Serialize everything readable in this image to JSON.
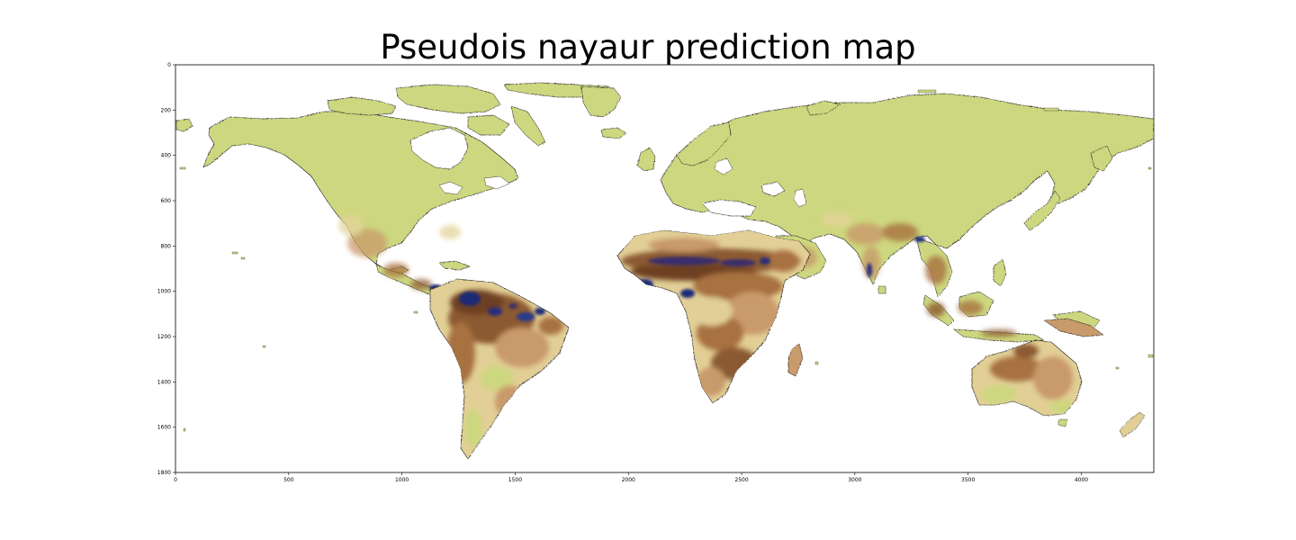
{
  "title": "Pseudois nayaur prediction map",
  "chart_data": {
    "type": "heatmap",
    "title": "Pseudois nayaur prediction map",
    "xlabel": "",
    "ylabel": "",
    "xlim": [
      0,
      4320
    ],
    "ylim": [
      1800,
      0
    ],
    "xticks": [
      "0",
      "500",
      "1000",
      "1500",
      "2000",
      "2500",
      "3000",
      "3500",
      "4000"
    ],
    "yticks": [
      "0",
      "200",
      "400",
      "600",
      "800",
      "1000",
      "1200",
      "1400",
      "1600",
      "1800"
    ],
    "colormap": [
      "#cbd77e",
      "#e9d9a3",
      "#c99a6b",
      "#8b5a33",
      "#1e2a78"
    ],
    "background": "#ffffff",
    "grid": false
  }
}
